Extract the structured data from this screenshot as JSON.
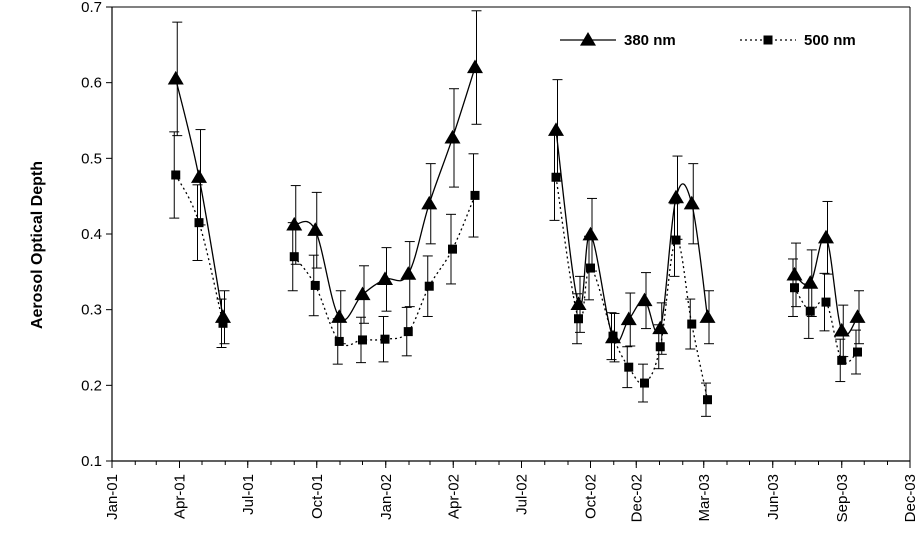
{
  "chart_data": {
    "type": "line",
    "title": "",
    "xlabel": "",
    "ylabel": "Aerosol Optical Depth",
    "ylim": [
      0.1,
      0.7
    ],
    "yticks": [
      "0.1",
      "0.2",
      "0.3",
      "0.4",
      "0.5",
      "0.6",
      "0.7"
    ],
    "xlim": [
      "2001-01-01",
      "2003-12-01"
    ],
    "xticks": [
      {
        "date": "2001-01-01",
        "label": "Jan-01"
      },
      {
        "date": "2001-04-01",
        "label": "Apr-01"
      },
      {
        "date": "2001-07-01",
        "label": "Jul-01"
      },
      {
        "date": "2001-10-01",
        "label": "Oct-01"
      },
      {
        "date": "2002-01-01",
        "label": "Jan-02"
      },
      {
        "date": "2002-04-01",
        "label": "Apr-02"
      },
      {
        "date": "2002-07-01",
        "label": "Jul-02"
      },
      {
        "date": "2002-10-01",
        "label": "Oct-02"
      },
      {
        "date": "2002-12-01",
        "label": "Dec-02"
      },
      {
        "date": "2003-03-01",
        "label": "Mar-03"
      },
      {
        "date": "2003-06-01",
        "label": "Jun-03"
      },
      {
        "date": "2003-09-01",
        "label": "Sep-03"
      },
      {
        "date": "2003-12-01",
        "label": "Dec-03"
      }
    ],
    "grid": false,
    "legend_position": "top-right",
    "series": [
      {
        "name": "380 nm",
        "color": "#000000",
        "marker": "triangle",
        "line_style": "solid",
        "segments": [
          [
            {
              "x": "2001-03-27",
              "y": 0.605,
              "err": 0.075
            },
            {
              "x": "2001-04-27",
              "y": 0.475,
              "err": 0.063
            },
            {
              "x": "2001-05-29",
              "y": 0.29,
              "err": 0.035
            }
          ],
          [
            {
              "x": "2001-09-01",
              "y": 0.412,
              "err": 0.052
            },
            {
              "x": "2001-09-29",
              "y": 0.405,
              "err": 0.05
            },
            {
              "x": "2001-10-31",
              "y": 0.29,
              "err": 0.035
            },
            {
              "x": "2001-12-01",
              "y": 0.32,
              "err": 0.038
            },
            {
              "x": "2001-12-31",
              "y": 0.34,
              "err": 0.042
            },
            {
              "x": "2002-01-31",
              "y": 0.347,
              "err": 0.043
            },
            {
              "x": "2002-02-28",
              "y": 0.44,
              "err": 0.053
            },
            {
              "x": "2002-03-31",
              "y": 0.527,
              "err": 0.065
            },
            {
              "x": "2002-04-30",
              "y": 0.62,
              "err": 0.075
            }
          ],
          [
            {
              "x": "2002-08-16",
              "y": 0.537,
              "err": 0.067
            },
            {
              "x": "2002-09-15",
              "y": 0.307,
              "err": 0.037
            },
            {
              "x": "2002-10-01",
              "y": 0.399,
              "err": 0.048
            },
            {
              "x": "2002-10-31",
              "y": 0.263,
              "err": 0.032
            },
            {
              "x": "2002-11-21",
              "y": 0.287,
              "err": 0.035
            },
            {
              "x": "2002-12-12",
              "y": 0.312,
              "err": 0.037
            },
            {
              "x": "2003-01-02",
              "y": 0.275,
              "err": 0.034
            },
            {
              "x": "2003-01-23",
              "y": 0.448,
              "err": 0.055
            },
            {
              "x": "2003-02-13",
              "y": 0.44,
              "err": 0.053
            },
            {
              "x": "2003-03-06",
              "y": 0.29,
              "err": 0.035
            }
          ],
          [
            {
              "x": "2003-06-30",
              "y": 0.346,
              "err": 0.042
            },
            {
              "x": "2003-07-21",
              "y": 0.335,
              "err": 0.044
            },
            {
              "x": "2003-08-11",
              "y": 0.395,
              "err": 0.048
            },
            {
              "x": "2003-09-01",
              "y": 0.272,
              "err": 0.034
            },
            {
              "x": "2003-09-22",
              "y": 0.29,
              "err": 0.035
            }
          ]
        ]
      },
      {
        "name": "500 nm",
        "color": "#000000",
        "marker": "square",
        "line_style": "dotted",
        "segments": [
          [
            {
              "x": "2001-03-27",
              "y": 0.478,
              "err": 0.057
            },
            {
              "x": "2001-04-27",
              "y": 0.415,
              "err": 0.05
            },
            {
              "x": "2001-05-29",
              "y": 0.282,
              "err": 0.032
            }
          ],
          [
            {
              "x": "2001-09-01",
              "y": 0.37,
              "err": 0.045
            },
            {
              "x": "2001-09-29",
              "y": 0.332,
              "err": 0.04
            },
            {
              "x": "2001-10-31",
              "y": 0.258,
              "err": 0.03
            },
            {
              "x": "2001-12-01",
              "y": 0.26,
              "err": 0.03
            },
            {
              "x": "2001-12-31",
              "y": 0.261,
              "err": 0.03
            },
            {
              "x": "2002-01-31",
              "y": 0.271,
              "err": 0.032
            },
            {
              "x": "2002-02-28",
              "y": 0.331,
              "err": 0.04
            },
            {
              "x": "2002-03-31",
              "y": 0.38,
              "err": 0.046
            },
            {
              "x": "2002-04-30",
              "y": 0.451,
              "err": 0.055
            }
          ],
          [
            {
              "x": "2002-08-16",
              "y": 0.475,
              "err": 0.057
            },
            {
              "x": "2002-09-15",
              "y": 0.288,
              "err": 0.033
            },
            {
              "x": "2002-10-01",
              "y": 0.355,
              "err": 0.042
            },
            {
              "x": "2002-10-31",
              "y": 0.265,
              "err": 0.031
            },
            {
              "x": "2002-11-21",
              "y": 0.224,
              "err": 0.027
            },
            {
              "x": "2002-12-12",
              "y": 0.203,
              "err": 0.025
            },
            {
              "x": "2003-01-02",
              "y": 0.251,
              "err": 0.029
            },
            {
              "x": "2003-01-23",
              "y": 0.392,
              "err": 0.048
            },
            {
              "x": "2003-02-13",
              "y": 0.281,
              "err": 0.033
            },
            {
              "x": "2003-03-06",
              "y": 0.181,
              "err": 0.022
            }
          ],
          [
            {
              "x": "2003-06-30",
              "y": 0.329,
              "err": 0.038
            },
            {
              "x": "2003-07-21",
              "y": 0.298,
              "err": 0.036
            },
            {
              "x": "2003-08-11",
              "y": 0.31,
              "err": 0.038
            },
            {
              "x": "2003-09-01",
              "y": 0.233,
              "err": 0.028
            },
            {
              "x": "2003-09-22",
              "y": 0.244,
              "err": 0.029
            }
          ]
        ]
      }
    ]
  }
}
